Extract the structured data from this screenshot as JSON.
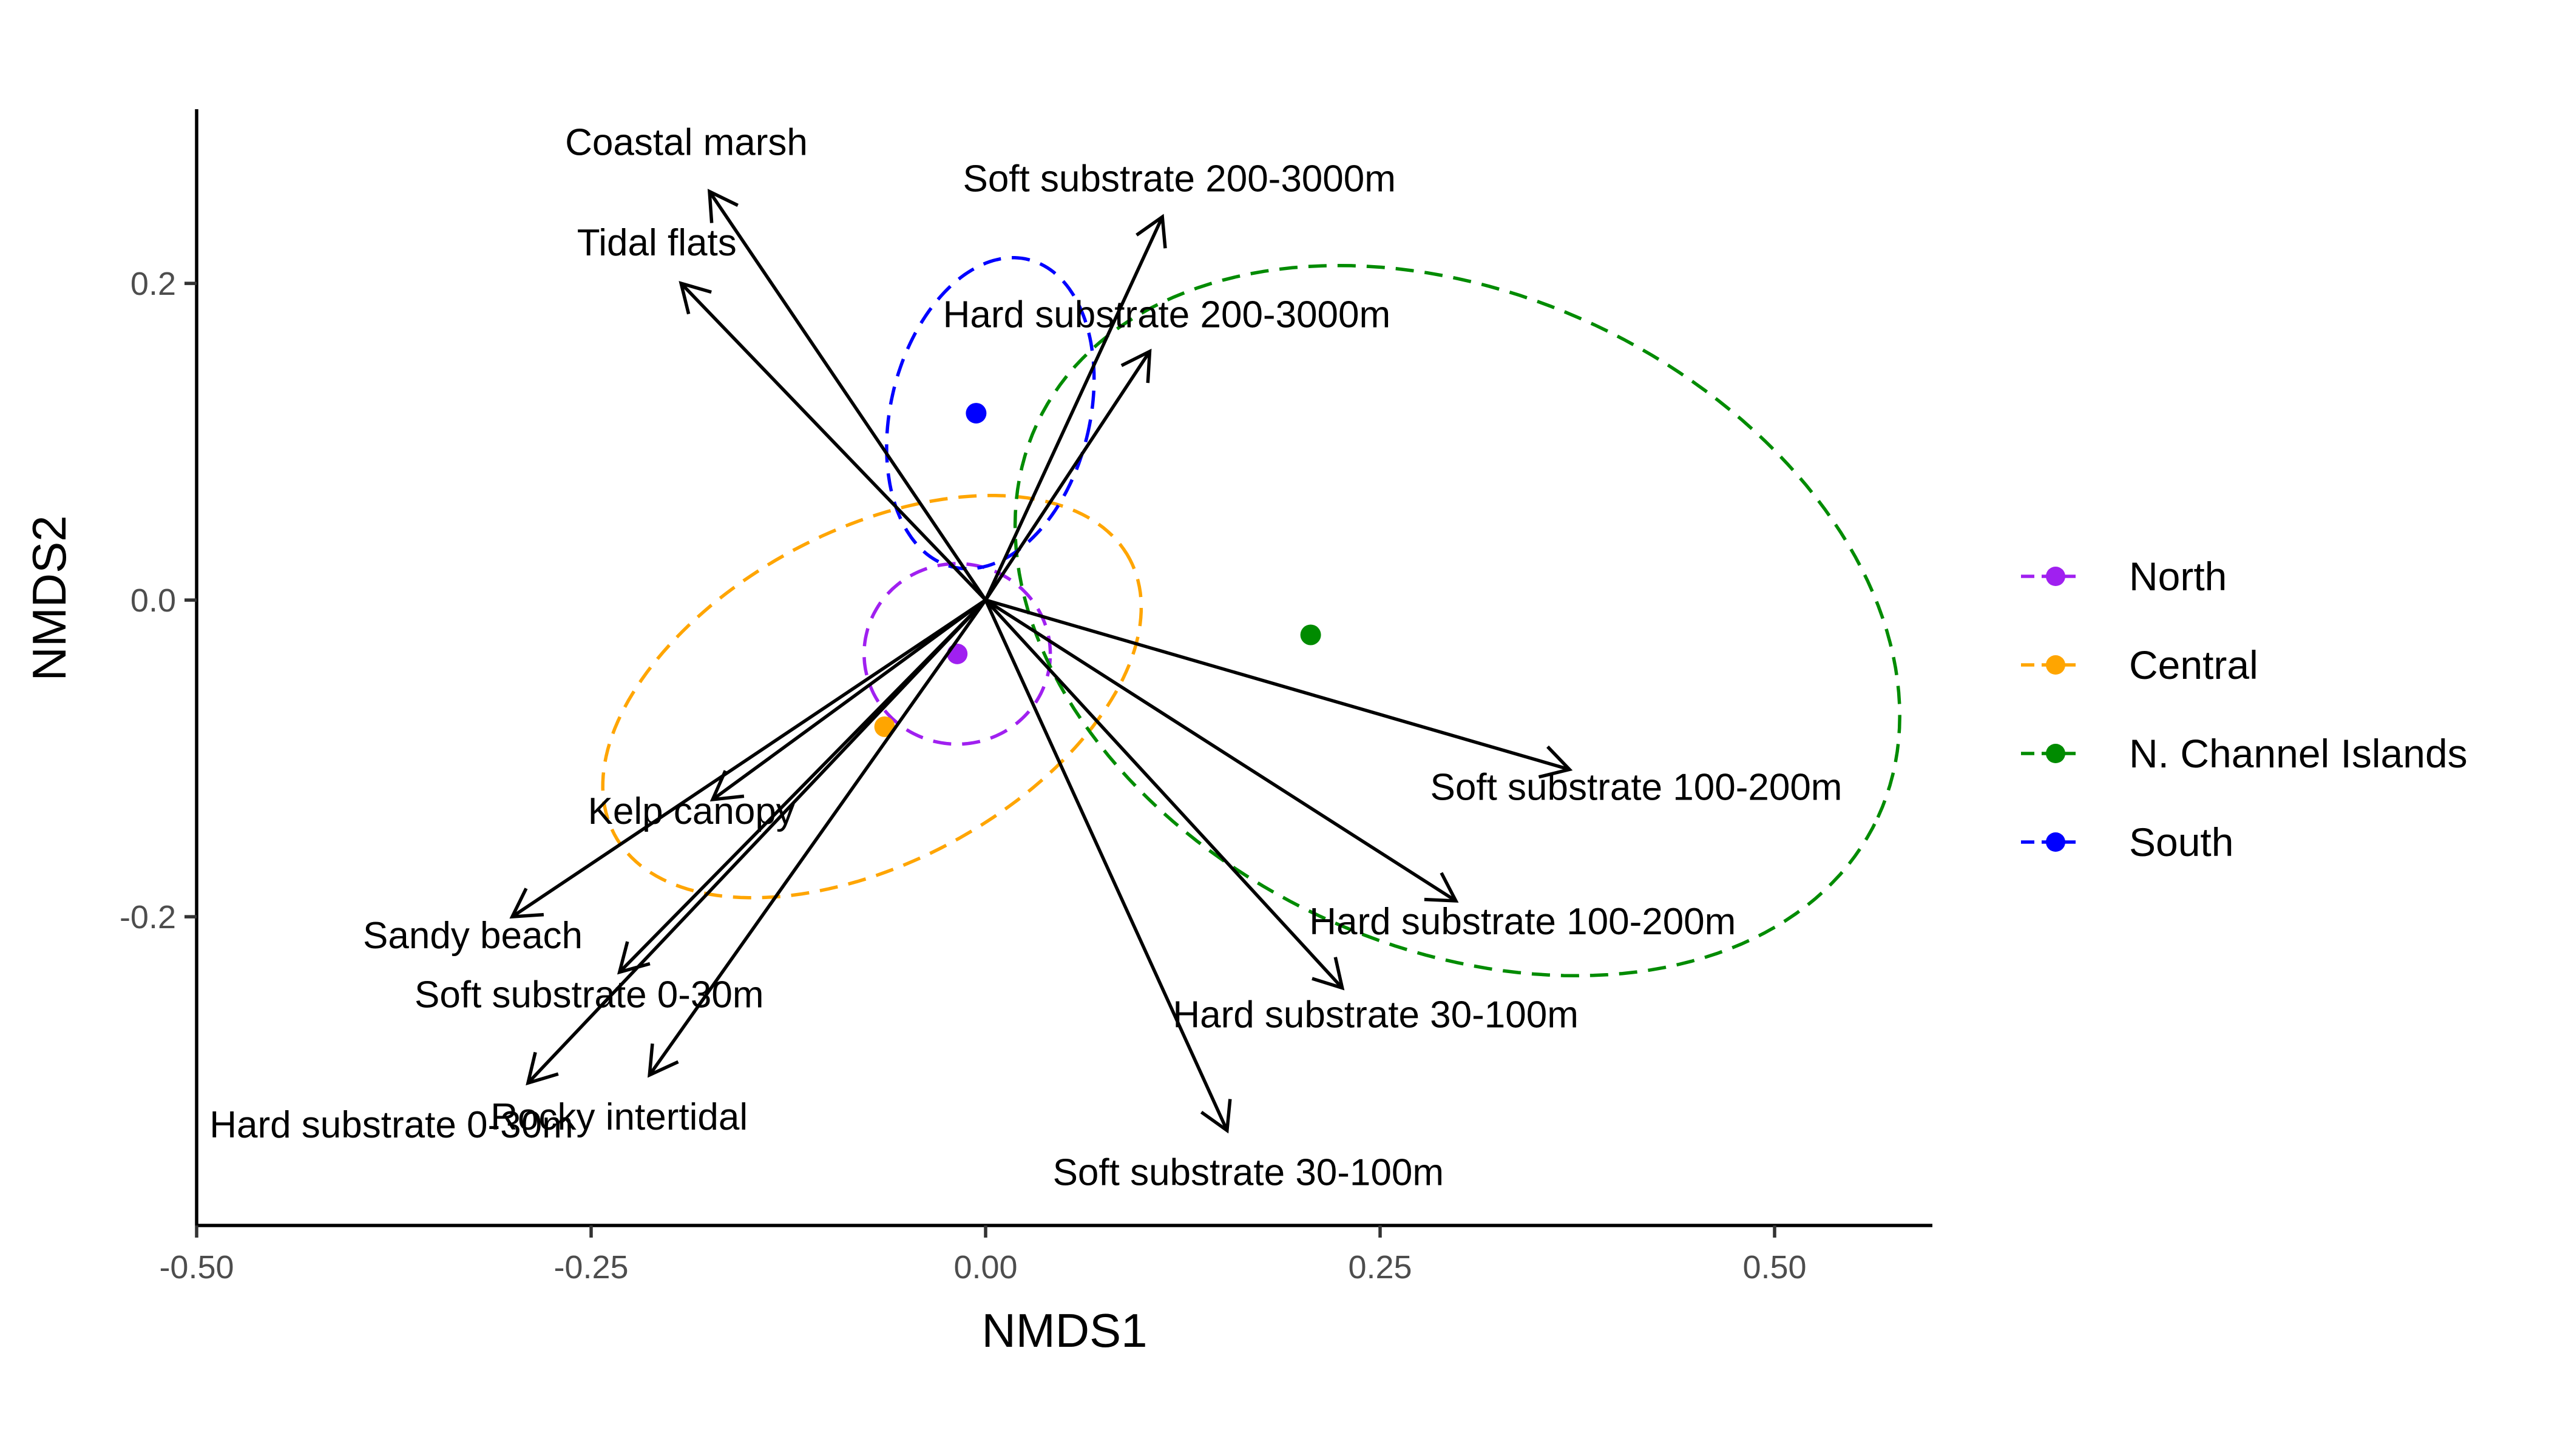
{
  "chart_data": {
    "type": "scatter",
    "xlabel": "NMDS1",
    "ylabel": "NMDS2",
    "xlim": [
      -0.5,
      0.6
    ],
    "ylim": [
      -0.395,
      0.31
    ],
    "x_ticks": [
      {
        "value": -0.5,
        "label": "-0.50"
      },
      {
        "value": -0.25,
        "label": "-0.25"
      },
      {
        "value": 0.0,
        "label": "0.00"
      },
      {
        "value": 0.25,
        "label": "0.25"
      },
      {
        "value": 0.5,
        "label": "0.50"
      }
    ],
    "y_ticks": [
      {
        "value": -0.2,
        "label": "-0.2"
      },
      {
        "value": 0.0,
        "label": "0.0"
      },
      {
        "value": 0.2,
        "label": "0.2"
      }
    ],
    "grid": false,
    "legend_position": "right",
    "groups": [
      {
        "name": "North",
        "color": "#A020F0",
        "centroid": [
          -0.018,
          -0.034
        ],
        "ellipse": {
          "center": [
            -0.018,
            -0.034
          ],
          "rx": 0.059,
          "ry": 0.057,
          "angle": 0
        }
      },
      {
        "name": "Central",
        "color": "#FFA500",
        "centroid": [
          -0.064,
          -0.08
        ],
        "ellipse": {
          "center": [
            -0.072,
            -0.061
          ],
          "rx": 0.185,
          "ry": 0.105,
          "angle": 28
        }
      },
      {
        "name": "N. Channel Islands",
        "color": "#008B00",
        "centroid": [
          0.206,
          -0.022
        ],
        "ellipse": {
          "center": [
            0.299,
            -0.013
          ],
          "rx": 0.294,
          "ry": 0.206,
          "angle": -25
        }
      },
      {
        "name": "South",
        "color": "#0000FF",
        "centroid": [
          -0.006,
          0.118
        ],
        "ellipse": {
          "center": [
            0.003,
            0.118
          ],
          "rx": 0.063,
          "ry": 0.1,
          "angle": -14
        }
      }
    ],
    "vectors": [
      {
        "label": "Coastal marsh",
        "x": -0.175,
        "y": 0.258
      },
      {
        "label": "Tidal flats",
        "x": -0.193,
        "y": 0.2
      },
      {
        "label": "Soft substrate 200-3000m",
        "x": 0.112,
        "y": 0.242
      },
      {
        "label": "Hard substrate 200-3000m",
        "x": 0.104,
        "y": 0.157
      },
      {
        "label": "Soft substrate 100-200m",
        "x": 0.37,
        "y": -0.107
      },
      {
        "label": "Hard substrate 100-200m",
        "x": 0.298,
        "y": -0.19
      },
      {
        "label": "Hard substrate 30-100m",
        "x": 0.226,
        "y": -0.245
      },
      {
        "label": "Soft substrate 30-100m",
        "x": 0.153,
        "y": -0.335
      },
      {
        "label": "Kelp canopy",
        "x": -0.173,
        "y": -0.126
      },
      {
        "label": "Sandy beach",
        "x": -0.3,
        "y": -0.2
      },
      {
        "label": "Soft substrate 0-30m",
        "x": -0.232,
        "y": -0.235
      },
      {
        "label": "Hard substrate 0-30m",
        "x": -0.29,
        "y": -0.305
      },
      {
        "label": "Rocky intertidal",
        "x": -0.213,
        "y": -0.3
      }
    ]
  }
}
